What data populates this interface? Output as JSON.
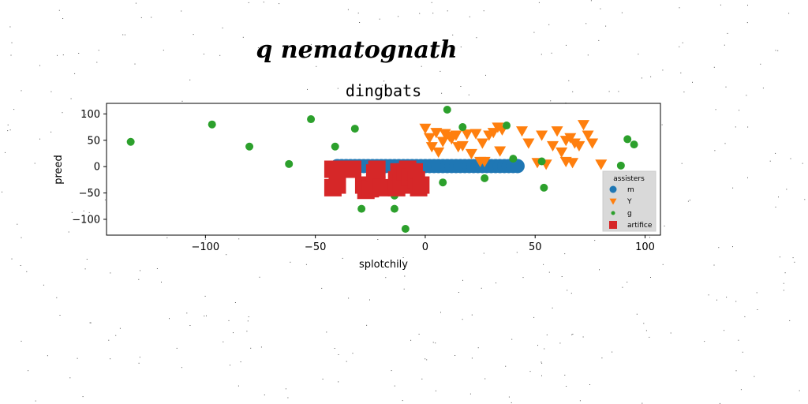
{
  "suptitle": "q nematognath",
  "chart_data": {
    "type": "scatter",
    "title": "dingbats",
    "xlabel": "splotchily",
    "ylabel": "preed",
    "xlim": [
      -145,
      107
    ],
    "ylim": [
      -130,
      120
    ],
    "xticks": [
      -100,
      -50,
      0,
      50,
      100
    ],
    "yticks": [
      100,
      50,
      0,
      -50,
      -100
    ],
    "grid": false,
    "legend": {
      "title": "assisters",
      "placement": "lower-right"
    },
    "series": [
      {
        "name": "m",
        "marker": "circle",
        "color": "#1f77b4",
        "x": [
          -40,
          -38,
          -36,
          -34,
          -32,
          -30,
          -28,
          -26,
          -24,
          -22,
          -20,
          -18,
          -16,
          -14,
          -12,
          -10,
          -8,
          -6,
          -4,
          -2,
          0,
          2,
          4,
          6,
          8,
          10,
          12,
          14,
          16,
          18,
          20,
          22,
          24,
          26,
          28,
          30,
          32,
          34,
          36,
          38,
          40,
          42
        ],
        "y": [
          1,
          1,
          1,
          1,
          1,
          1,
          1,
          1,
          1,
          1,
          1,
          1,
          1,
          1,
          1,
          1,
          1,
          1,
          1,
          1,
          1,
          1,
          1,
          1,
          1,
          1,
          1,
          1,
          1,
          1,
          1,
          1,
          1,
          1,
          1,
          1,
          1,
          1,
          1,
          1,
          1,
          1
        ]
      },
      {
        "name": "Y",
        "marker": "triangle-down",
        "color": "#ff7f0e",
        "x": [
          0,
          2,
          5,
          9,
          11,
          14,
          17,
          19,
          23,
          26,
          29,
          31,
          33,
          35,
          3,
          6,
          8,
          12,
          15,
          21,
          25,
          27,
          34,
          44,
          47,
          53,
          58,
          60,
          62,
          64,
          66,
          68,
          70,
          72,
          74,
          76,
          80,
          51,
          55,
          64,
          67
        ],
        "y": [
          73,
          55,
          65,
          63,
          58,
          60,
          40,
          62,
          63,
          45,
          60,
          65,
          75,
          70,
          38,
          28,
          48,
          53,
          38,
          25,
          10,
          10,
          30,
          68,
          45,
          60,
          40,
          68,
          28,
          50,
          55,
          45,
          40,
          80,
          60,
          45,
          5,
          8,
          5,
          10,
          8
        ]
      },
      {
        "name": "g",
        "marker": "circle",
        "color": "#2ca02c",
        "x": [
          -134,
          -97,
          -80,
          -62,
          -52,
          -41,
          -32,
          -29,
          -14,
          -14,
          -9,
          8,
          10,
          17,
          27,
          37,
          40,
          53,
          54,
          92,
          95,
          89
        ],
        "y": [
          47,
          80,
          38,
          5,
          90,
          38,
          72,
          -80,
          -55,
          -80,
          -118,
          -30,
          108,
          75,
          -22,
          78,
          15,
          10,
          -40,
          52,
          42,
          2
        ]
      },
      {
        "name": "artifice",
        "marker": "square",
        "color": "#d62728",
        "x": [
          -42,
          -42,
          -40,
          -40,
          -37,
          -33,
          -28,
          -27,
          -25,
          -23,
          -22,
          -22,
          -20,
          -13,
          -13,
          -12,
          -11,
          -10,
          -9,
          -8,
          -7,
          -5,
          -4,
          -3,
          -2
        ],
        "y": [
          -5,
          -40,
          -15,
          -35,
          -5,
          -5,
          -35,
          -45,
          -42,
          -12,
          -35,
          -5,
          -40,
          -25,
          -40,
          -10,
          -30,
          -35,
          -10,
          -5,
          -20,
          -10,
          -25,
          -40,
          -35
        ]
      }
    ]
  }
}
